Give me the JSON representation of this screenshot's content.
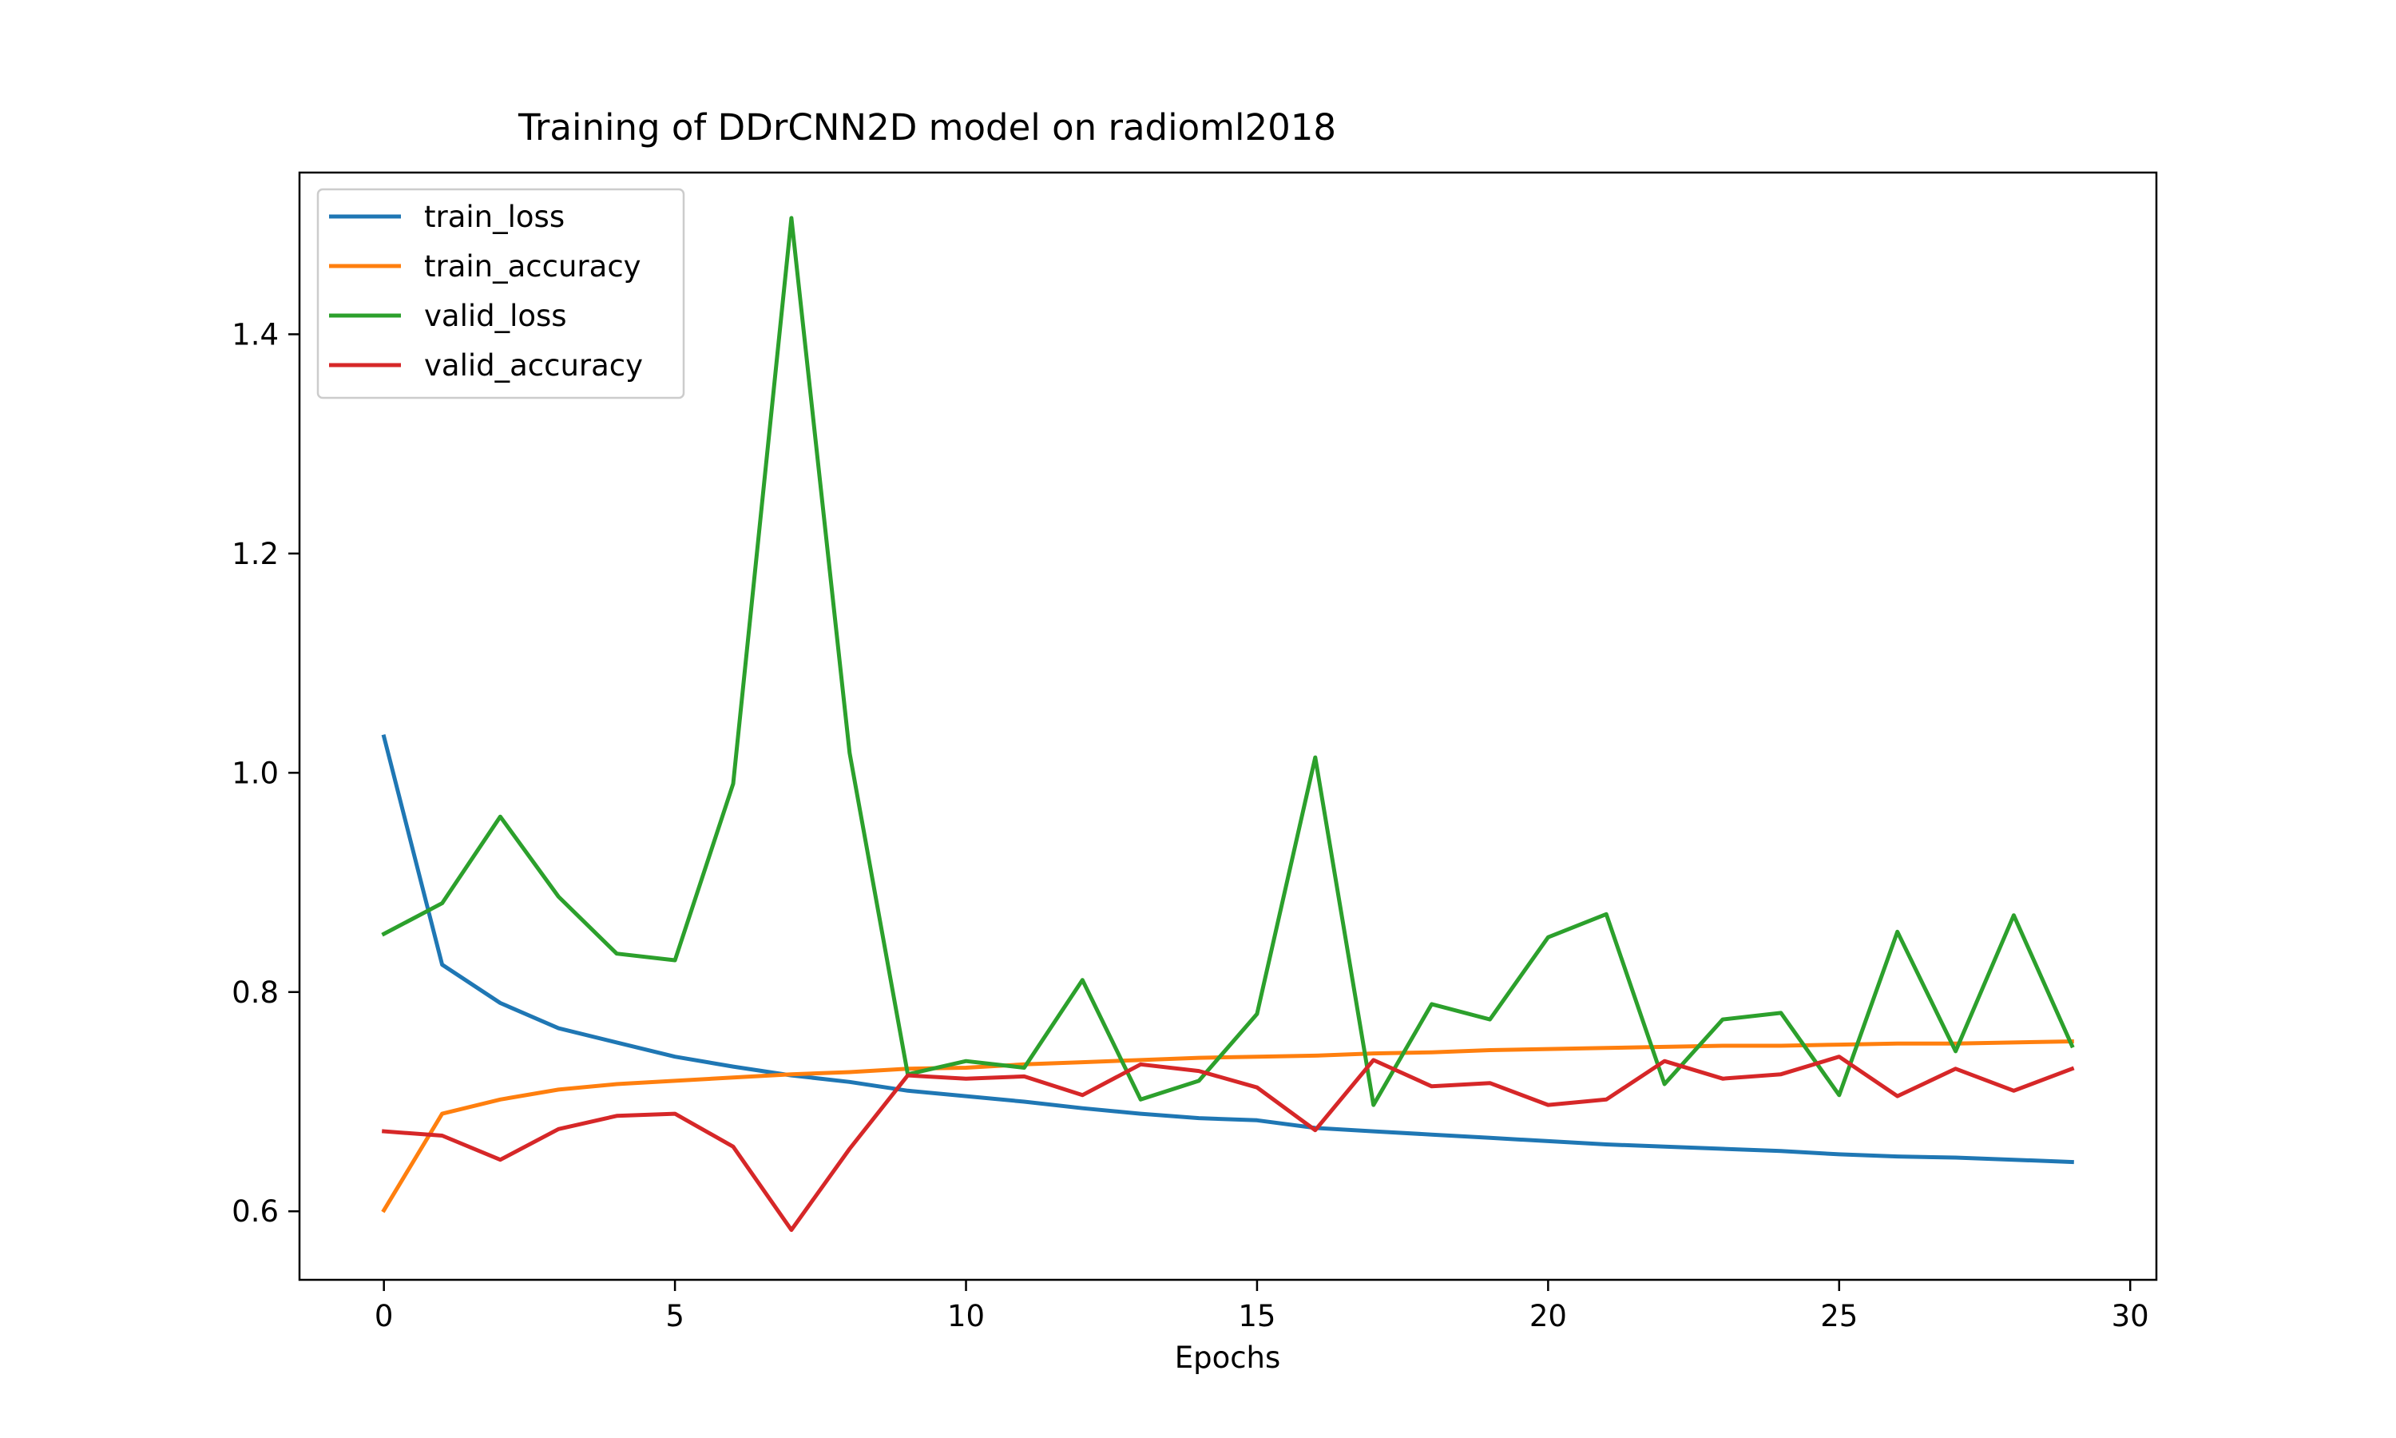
{
  "chart_data": {
    "type": "line",
    "title": "Training of DDrCNN2D model on radioml2018",
    "xlabel": "Epochs",
    "ylabel": "",
    "xlim": [
      -1.45,
      30.45
    ],
    "ylim": [
      0.5375,
      1.5475
    ],
    "xticks": [
      0,
      5,
      10,
      15,
      20,
      25,
      30
    ],
    "xtick_labels": [
      "0",
      "5",
      "10",
      "15",
      "20",
      "25",
      "30"
    ],
    "yticks": [
      0.6,
      0.8,
      1.0,
      1.2,
      1.4
    ],
    "ytick_labels": [
      "0.6",
      "0.8",
      "1.0",
      "1.2",
      "1.4"
    ],
    "grid": false,
    "legend_position": "top-left",
    "x": [
      0,
      1,
      2,
      3,
      4,
      5,
      6,
      7,
      8,
      9,
      10,
      11,
      12,
      13,
      14,
      15,
      16,
      17,
      18,
      19,
      20,
      21,
      22,
      23,
      24,
      25,
      26,
      27,
      28,
      29
    ],
    "series": [
      {
        "name": "train_loss",
        "color": "#1f77b4",
        "values": [
          1.033,
          0.825,
          0.79,
          0.767,
          0.754,
          0.741,
          0.732,
          0.724,
          0.718,
          0.71,
          0.705,
          0.7,
          0.694,
          0.689,
          0.685,
          0.683,
          0.676,
          0.673,
          0.67,
          0.667,
          0.664,
          0.661,
          0.659,
          0.657,
          0.655,
          0.652,
          0.65,
          0.649,
          0.647,
          0.645
        ]
      },
      {
        "name": "train_accuracy",
        "color": "#ff7f0e",
        "values": [
          0.601,
          0.689,
          0.702,
          0.711,
          0.716,
          0.719,
          0.722,
          0.725,
          0.727,
          0.73,
          0.731,
          0.734,
          0.736,
          0.738,
          0.74,
          0.741,
          0.742,
          0.744,
          0.745,
          0.747,
          0.748,
          0.749,
          0.75,
          0.751,
          0.751,
          0.752,
          0.753,
          0.753,
          0.754,
          0.755
        ]
      },
      {
        "name": "valid_loss",
        "color": "#2ca02c",
        "values": [
          0.853,
          0.881,
          0.96,
          0.887,
          0.835,
          0.829,
          0.99,
          1.506,
          1.018,
          0.725,
          0.737,
          0.731,
          0.811,
          0.702,
          0.719,
          0.78,
          1.014,
          0.697,
          0.789,
          0.775,
          0.85,
          0.871,
          0.716,
          0.775,
          0.781,
          0.706,
          0.855,
          0.746,
          0.87,
          0.751
        ]
      },
      {
        "name": "valid_accuracy",
        "color": "#d62728",
        "values": [
          0.673,
          0.669,
          0.647,
          0.675,
          0.687,
          0.689,
          0.659,
          0.583,
          0.657,
          0.724,
          0.721,
          0.723,
          0.706,
          0.734,
          0.728,
          0.713,
          0.674,
          0.738,
          0.714,
          0.717,
          0.697,
          0.702,
          0.737,
          0.721,
          0.725,
          0.741,
          0.705,
          0.73,
          0.71,
          0.73
        ]
      }
    ]
  }
}
